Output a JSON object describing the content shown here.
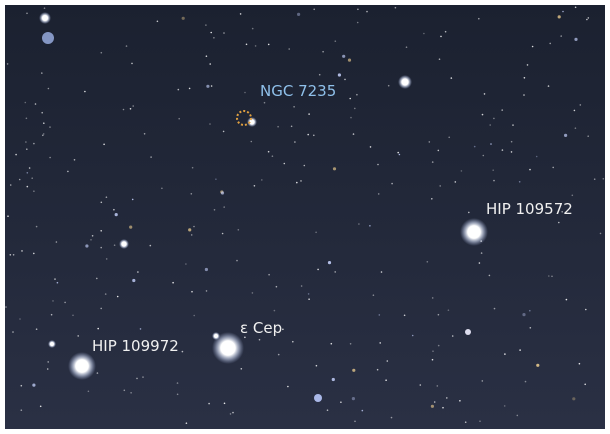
{
  "labels": {
    "ngc": "NGC 7235",
    "hip1": "HIP 109572",
    "eps": "ε Cep",
    "hip2": "HIP 109972"
  }
}
